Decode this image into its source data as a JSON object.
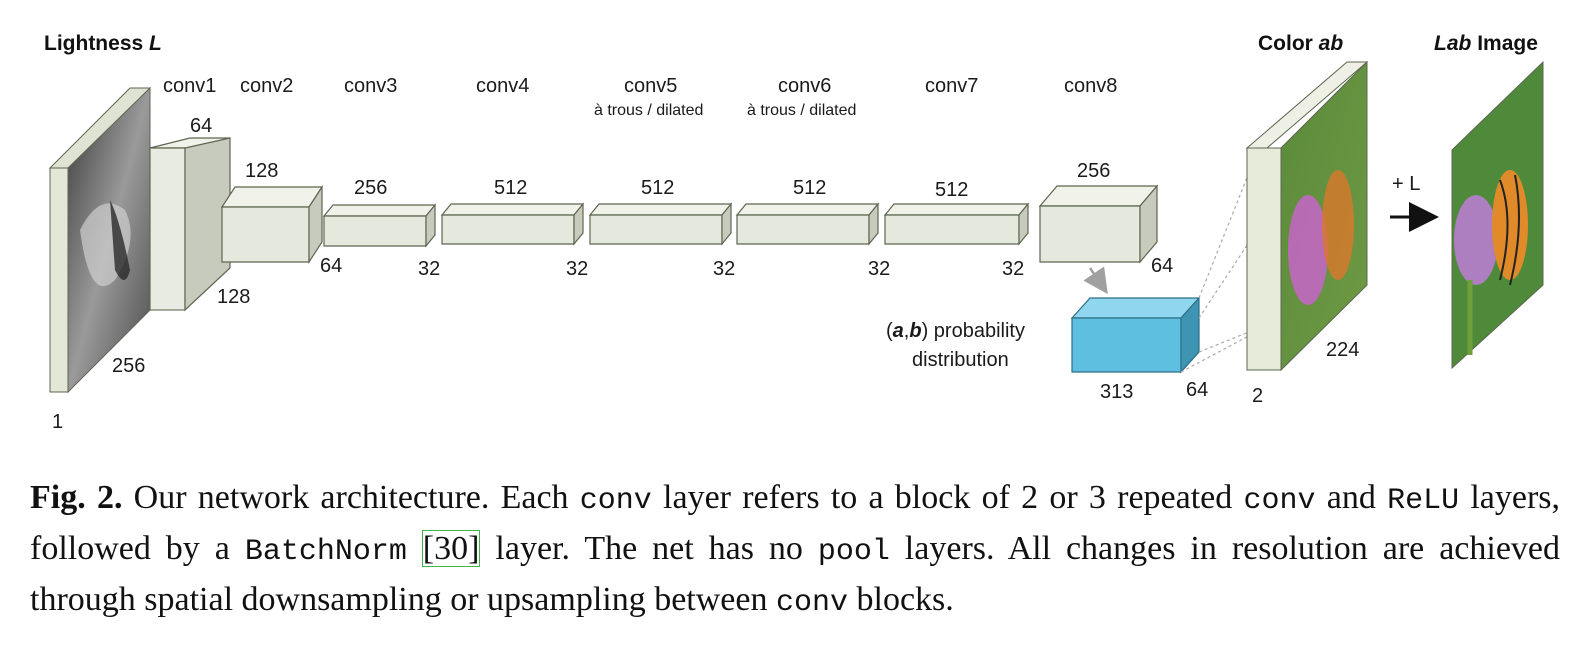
{
  "figure": {
    "input_header": "Lightness",
    "input_header_symbol": "L",
    "color_header": "Color",
    "color_header_symbol": "ab",
    "lab_header_symbol": "Lab",
    "lab_header": "Image",
    "plus_l": "+ L",
    "prob_symbol_a": "a",
    "prob_symbol_b": "b",
    "prob_label": "probability",
    "prob_label2": "distribution",
    "layers": [
      {
        "name": "conv1",
        "sub": "",
        "channels": "64",
        "res": "128"
      },
      {
        "name": "conv2",
        "sub": "",
        "channels": "128",
        "res": "64"
      },
      {
        "name": "conv3",
        "sub": "",
        "channels": "256",
        "res": "32"
      },
      {
        "name": "conv4",
        "sub": "",
        "channels": "512",
        "res": "32"
      },
      {
        "name": "conv5",
        "sub": "à trous / dilated",
        "channels": "512",
        "res": "32"
      },
      {
        "name": "conv6",
        "sub": "à trous / dilated",
        "channels": "512",
        "res": "32"
      },
      {
        "name": "conv7",
        "sub": "",
        "channels": "512",
        "res": "32"
      },
      {
        "name": "conv8",
        "sub": "",
        "channels": "256",
        "res": "64"
      }
    ],
    "input_dims": {
      "channels": "1",
      "res": "256"
    },
    "prob_dims": {
      "channels": "313",
      "res": "64"
    },
    "output_dims": {
      "channels": "2",
      "res": "224"
    },
    "colors": {
      "box": "#e5e8dc",
      "prob_box": "#5fbfe0",
      "edge": "#5d6650"
    }
  },
  "caption": {
    "fig_label": "Fig. 2.",
    "t1": " Our network architecture. Each ",
    "m1": "conv",
    "t2": " layer refers to a block of 2 or 3 repeated ",
    "m2": "conv",
    "t3": " and ",
    "m3": "ReLU",
    "t4": " layers, followed by a ",
    "m4": "BatchNorm",
    "ref": "[30]",
    "t5": " layer. The net has no ",
    "m5": "pool",
    "t6": " layers. All changes in resolution are achieved through spatial downsampling or upsampling between ",
    "m6": "conv",
    "t7": " blocks."
  }
}
